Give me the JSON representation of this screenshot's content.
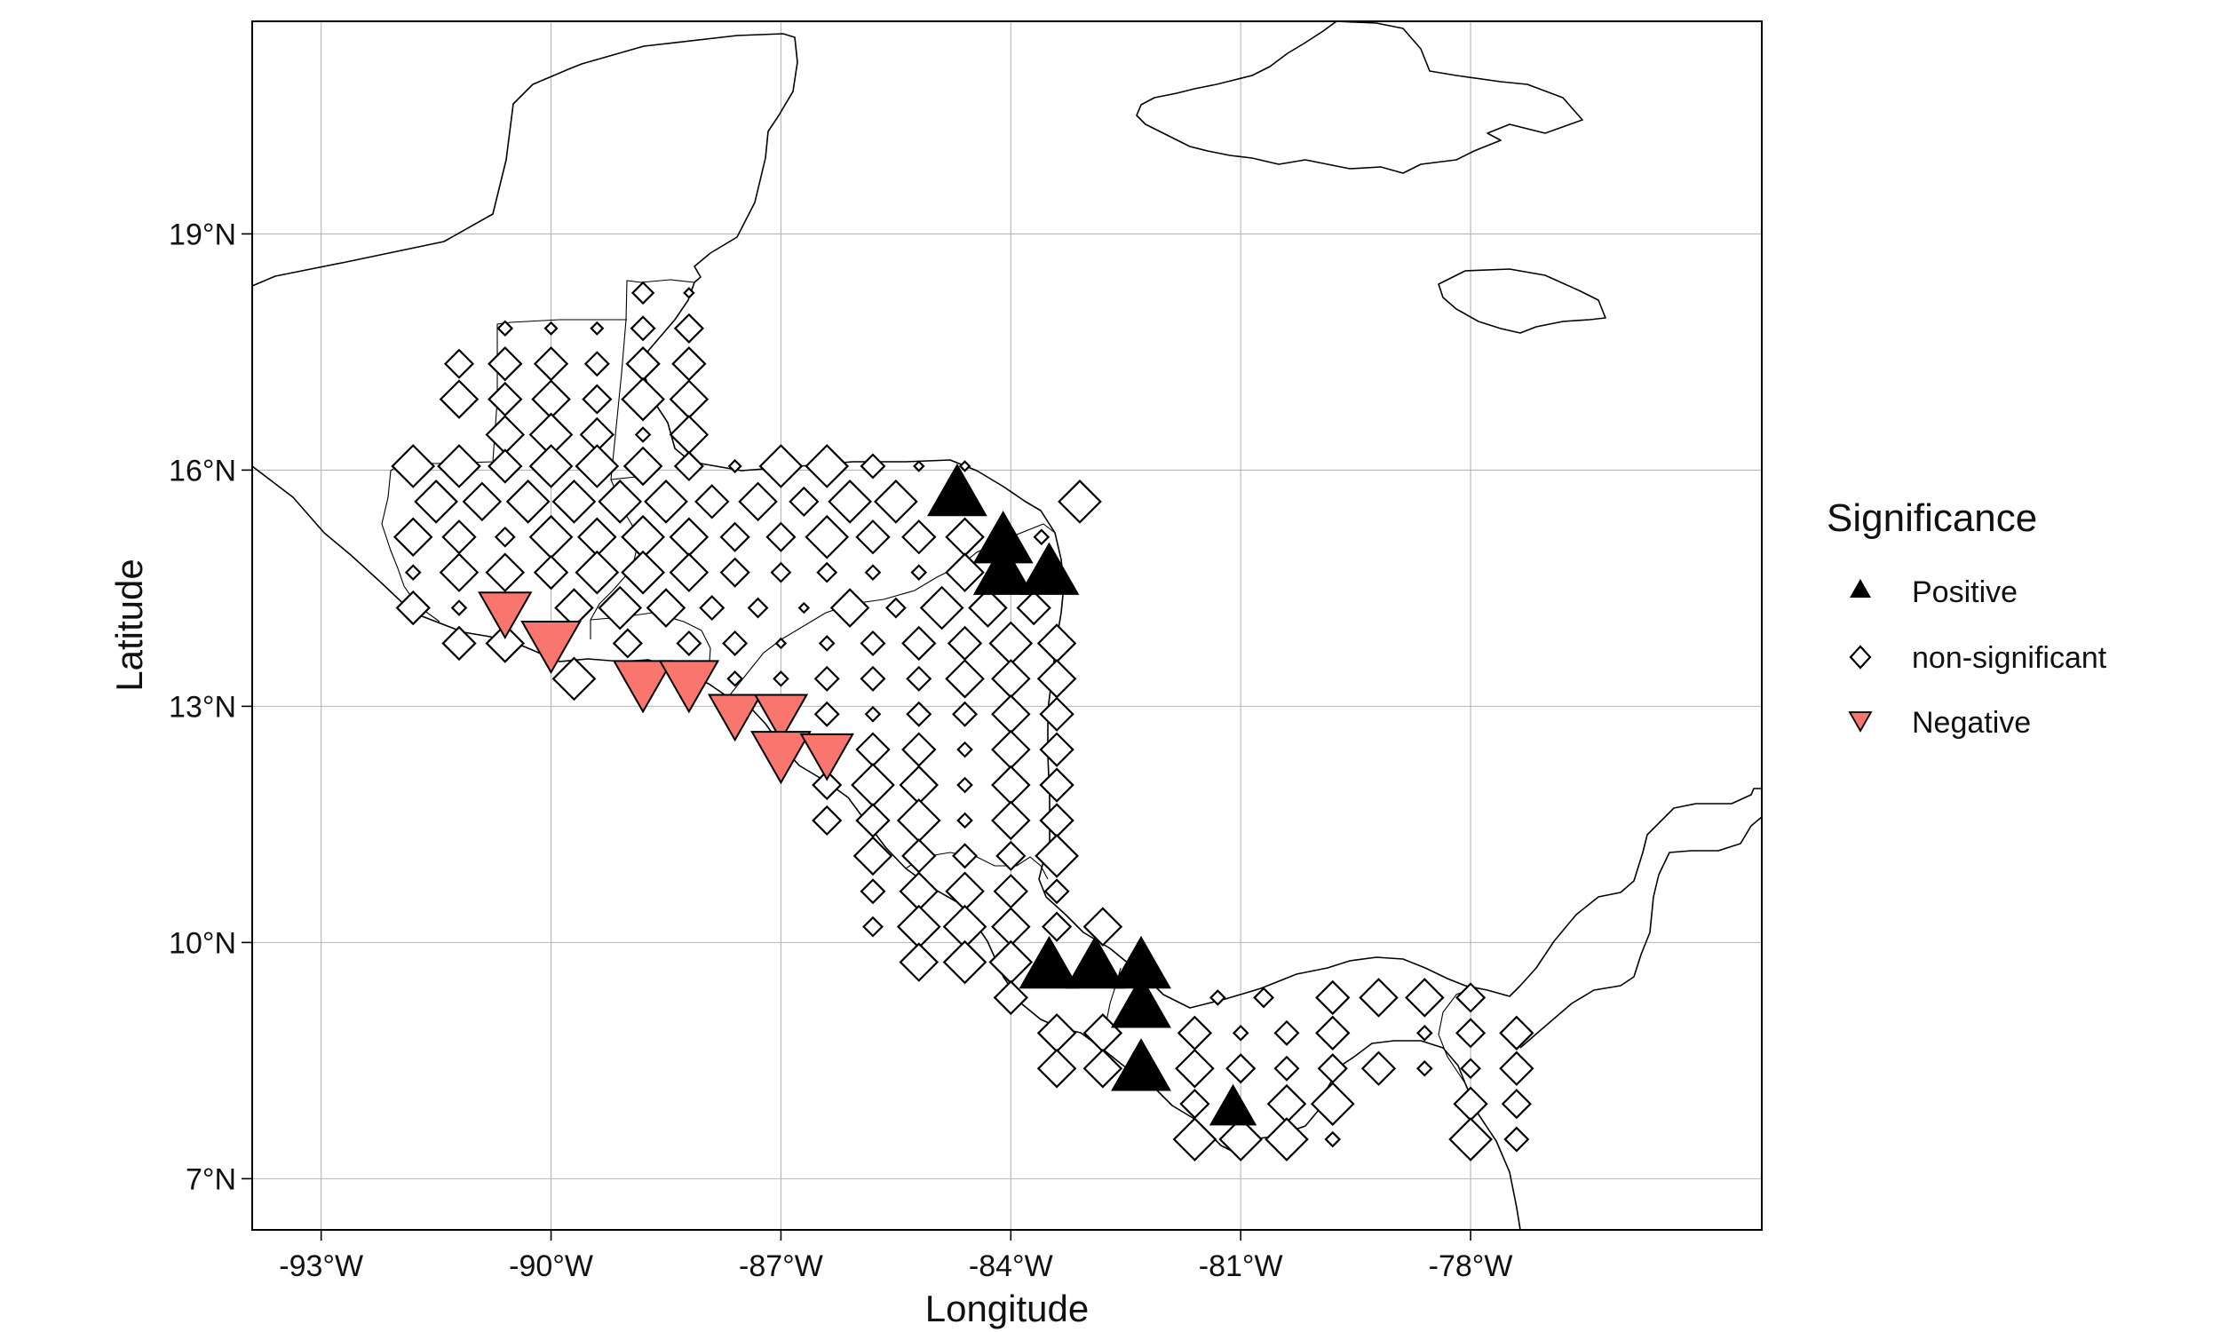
{
  "axes": {
    "x_label": "Longitude",
    "y_label": "Latitude",
    "x_range_deg": [
      -93.9,
      -74.2
    ],
    "y_range_deg": [
      6.35,
      21.7
    ],
    "x_ticks": [
      {
        "value": -93,
        "label": "-93°W"
      },
      {
        "value": -90,
        "label": "-90°W"
      },
      {
        "value": -87,
        "label": "-87°W"
      },
      {
        "value": -84,
        "label": "-84°W"
      },
      {
        "value": -81,
        "label": "-81°W"
      },
      {
        "value": -78,
        "label": "-78°W"
      }
    ],
    "y_ticks": [
      {
        "value": 7,
        "label": "7°N"
      },
      {
        "value": 10,
        "label": "10°N"
      },
      {
        "value": 13,
        "label": "13°N"
      },
      {
        "value": 16,
        "label": "16°N"
      },
      {
        "value": 19,
        "label": "19°N"
      }
    ]
  },
  "legend": {
    "title": "Significance",
    "items": [
      {
        "key": "positive",
        "label": "Positive",
        "shape": "triangle-up",
        "color": "#000000"
      },
      {
        "key": "ns",
        "label": "non-significant",
        "shape": "diamond-open",
        "color": "#ffffff"
      },
      {
        "key": "negative",
        "label": "Negative",
        "shape": "triangle-down",
        "color": "#F8766D"
      }
    ]
  },
  "colors": {
    "positive": "#000000",
    "negative": "#F8766D",
    "outline": "#000000",
    "grid": "#b5b5b5"
  },
  "chart_data": {
    "type": "scatter",
    "grid": true,
    "grid_spacing_deg": 0.6,
    "series": [
      {
        "name": "Positive",
        "points": [
          [
            -84.7,
            15.7,
            0.9
          ],
          [
            -84.1,
            15.1,
            0.9
          ],
          [
            -84.1,
            14.7,
            0.9
          ],
          [
            -83.5,
            14.7,
            0.9
          ],
          [
            -83.5,
            9.7,
            0.9
          ],
          [
            -82.9,
            9.7,
            0.9
          ],
          [
            -82.3,
            9.7,
            0.9
          ],
          [
            -82.3,
            9.2,
            0.9
          ],
          [
            -82.3,
            8.4,
            0.9
          ],
          [
            -81.1,
            7.9,
            0.7
          ]
        ]
      },
      {
        "name": "Negative",
        "points": [
          [
            -90.6,
            14.2,
            0.8
          ],
          [
            -90.0,
            13.8,
            0.9
          ],
          [
            -88.8,
            13.3,
            0.9
          ],
          [
            -88.2,
            13.3,
            0.9
          ],
          [
            -87.6,
            12.9,
            0.8
          ],
          [
            -87.0,
            12.9,
            0.8
          ],
          [
            -87.0,
            12.4,
            0.9
          ],
          [
            -86.4,
            12.4,
            0.8
          ]
        ]
      },
      {
        "name": "non-significant",
        "rows": [
          {
            "lat": 18.25,
            "cols": [
              [
                -88.8,
                0.45
              ],
              [
                -88.2,
                0.2
              ]
            ]
          },
          {
            "lat": 17.8,
            "cols": [
              [
                -90.6,
                0.3
              ],
              [
                -90.0,
                0.25
              ],
              [
                -89.4,
                0.25
              ],
              [
                -88.8,
                0.5
              ],
              [
                -88.2,
                0.6
              ]
            ]
          },
          {
            "lat": 17.35,
            "cols": [
              [
                -91.2,
                0.6
              ],
              [
                -90.6,
                0.7
              ],
              [
                -90.0,
                0.7
              ],
              [
                -89.4,
                0.5
              ],
              [
                -88.8,
                0.7
              ],
              [
                -88.2,
                0.7
              ]
            ]
          },
          {
            "lat": 16.9,
            "cols": [
              [
                -91.2,
                0.8
              ],
              [
                -90.6,
                0.7
              ],
              [
                -90.0,
                0.8
              ],
              [
                -89.4,
                0.6
              ],
              [
                -88.8,
                0.9
              ],
              [
                -88.2,
                0.8
              ]
            ]
          },
          {
            "lat": 16.45,
            "cols": [
              [
                -90.6,
                0.8
              ],
              [
                -90.0,
                0.9
              ],
              [
                -89.4,
                0.7
              ],
              [
                -88.8,
                0.3
              ],
              [
                -88.2,
                0.8
              ]
            ]
          },
          {
            "lat": 16.05,
            "cols": [
              [
                -91.8,
                0.9
              ],
              [
                -91.2,
                0.9
              ],
              [
                -90.6,
                0.7
              ],
              [
                -90.0,
                0.9
              ],
              [
                -89.4,
                0.9
              ],
              [
                -88.8,
                0.8
              ],
              [
                -88.2,
                0.6
              ],
              [
                -87.6,
                0.25
              ],
              [
                -87.0,
                0.9
              ],
              [
                -86.4,
                0.9
              ],
              [
                -85.8,
                0.5
              ],
              [
                -85.2,
                0.2
              ],
              [
                -84.6,
                0.2
              ]
            ]
          },
          {
            "lat": 15.6,
            "cols": [
              [
                -91.5,
                0.9
              ],
              [
                -90.9,
                0.8
              ],
              [
                -90.3,
                0.9
              ],
              [
                -89.7,
                0.9
              ],
              [
                -89.1,
                0.9
              ],
              [
                -88.5,
                0.9
              ],
              [
                -87.9,
                0.7
              ],
              [
                -87.3,
                0.8
              ],
              [
                -86.7,
                0.6
              ],
              [
                -86.1,
                0.9
              ],
              [
                -85.5,
                0.9
              ],
              [
                -83.1,
                0.9
              ]
            ]
          },
          {
            "lat": 15.15,
            "cols": [
              [
                -91.8,
                0.8
              ],
              [
                -91.2,
                0.7
              ],
              [
                -90.6,
                0.4
              ],
              [
                -90.0,
                0.9
              ],
              [
                -89.4,
                0.8
              ],
              [
                -88.8,
                0.9
              ],
              [
                -88.2,
                0.8
              ],
              [
                -87.6,
                0.6
              ],
              [
                -87.0,
                0.6
              ],
              [
                -86.4,
                0.9
              ],
              [
                -85.8,
                0.7
              ],
              [
                -85.2,
                0.7
              ],
              [
                -84.6,
                0.8
              ],
              [
                -83.6,
                0.3
              ]
            ]
          },
          {
            "lat": 14.7,
            "cols": [
              [
                -91.8,
                0.3
              ],
              [
                -91.2,
                0.8
              ],
              [
                -90.6,
                0.8
              ],
              [
                -90.0,
                0.7
              ],
              [
                -89.4,
                0.9
              ],
              [
                -88.8,
                0.9
              ],
              [
                -88.2,
                0.8
              ],
              [
                -87.6,
                0.6
              ],
              [
                -87.0,
                0.4
              ],
              [
                -86.4,
                0.4
              ],
              [
                -85.8,
                0.3
              ],
              [
                -85.2,
                0.3
              ],
              [
                -84.6,
                0.8
              ]
            ]
          },
          {
            "lat": 14.25,
            "cols": [
              [
                -91.8,
                0.7
              ],
              [
                -91.2,
                0.3
              ],
              [
                -89.7,
                0.8
              ],
              [
                -89.1,
                0.9
              ],
              [
                -88.5,
                0.8
              ],
              [
                -87.9,
                0.5
              ],
              [
                -87.3,
                0.4
              ],
              [
                -86.7,
                0.2
              ],
              [
                -86.1,
                0.8
              ],
              [
                -85.5,
                0.4
              ],
              [
                -84.9,
                0.9
              ],
              [
                -84.3,
                0.8
              ],
              [
                -83.7,
                0.7
              ]
            ]
          },
          {
            "lat": 13.8,
            "cols": [
              [
                -91.2,
                0.7
              ],
              [
                -90.6,
                0.8
              ],
              [
                -89.0,
                0.6
              ],
              [
                -88.2,
                0.5
              ],
              [
                -87.6,
                0.5
              ],
              [
                -87.0,
                0.2
              ],
              [
                -86.4,
                0.3
              ],
              [
                -85.8,
                0.5
              ],
              [
                -85.2,
                0.7
              ],
              [
                -84.6,
                0.7
              ],
              [
                -84.0,
                0.9
              ],
              [
                -83.4,
                0.8
              ]
            ]
          },
          {
            "lat": 13.35,
            "cols": [
              [
                -89.7,
                0.9
              ],
              [
                -87.6,
                0.3
              ],
              [
                -87.0,
                0.3
              ],
              [
                -86.4,
                0.5
              ],
              [
                -85.8,
                0.5
              ],
              [
                -85.2,
                0.5
              ],
              [
                -84.6,
                0.8
              ],
              [
                -84.0,
                0.8
              ],
              [
                -83.4,
                0.8
              ]
            ]
          },
          {
            "lat": 12.9,
            "cols": [
              [
                -86.4,
                0.5
              ],
              [
                -85.8,
                0.3
              ],
              [
                -85.2,
                0.5
              ],
              [
                -84.6,
                0.5
              ],
              [
                -84.0,
                0.8
              ],
              [
                -83.4,
                0.7
              ]
            ]
          },
          {
            "lat": 12.45,
            "cols": [
              [
                -85.8,
                0.7
              ],
              [
                -85.2,
                0.7
              ],
              [
                -84.6,
                0.3
              ],
              [
                -84.0,
                0.8
              ],
              [
                -83.4,
                0.7
              ]
            ]
          },
          {
            "lat": 12.0,
            "cols": [
              [
                -86.4,
                0.6
              ],
              [
                -85.8,
                0.9
              ],
              [
                -85.2,
                0.8
              ],
              [
                -84.6,
                0.3
              ],
              [
                -84.0,
                0.8
              ],
              [
                -83.4,
                0.7
              ]
            ]
          },
          {
            "lat": 11.55,
            "cols": [
              [
                -86.4,
                0.6
              ],
              [
                -85.8,
                0.7
              ],
              [
                -85.2,
                0.9
              ],
              [
                -84.6,
                0.3
              ],
              [
                -84.0,
                0.8
              ],
              [
                -83.4,
                0.7
              ]
            ]
          },
          {
            "lat": 11.1,
            "cols": [
              [
                -85.8,
                0.8
              ],
              [
                -85.2,
                0.7
              ],
              [
                -84.6,
                0.5
              ],
              [
                -84.0,
                0.6
              ],
              [
                -83.4,
                0.9
              ]
            ]
          },
          {
            "lat": 10.65,
            "cols": [
              [
                -85.8,
                0.5
              ],
              [
                -85.2,
                0.8
              ],
              [
                -84.6,
                0.8
              ],
              [
                -84.0,
                0.7
              ],
              [
                -83.4,
                0.5
              ]
            ]
          },
          {
            "lat": 10.2,
            "cols": [
              [
                -85.8,
                0.4
              ],
              [
                -85.2,
                0.9
              ],
              [
                -84.6,
                0.9
              ],
              [
                -84.0,
                0.8
              ],
              [
                -83.4,
                0.6
              ],
              [
                -82.8,
                0.8
              ]
            ]
          },
          {
            "lat": 9.75,
            "cols": [
              [
                -85.2,
                0.8
              ],
              [
                -84.6,
                0.9
              ],
              [
                -84.0,
                0.9
              ]
            ]
          },
          {
            "lat": 9.3,
            "cols": [
              [
                -84.0,
                0.7
              ],
              [
                -81.3,
                0.3
              ],
              [
                -80.7,
                0.4
              ],
              [
                -79.8,
                0.7
              ],
              [
                -79.2,
                0.8
              ],
              [
                -78.6,
                0.8
              ],
              [
                -78.0,
                0.6
              ]
            ]
          },
          {
            "lat": 8.85,
            "cols": [
              [
                -83.4,
                0.8
              ],
              [
                -82.8,
                0.8
              ],
              [
                -81.6,
                0.7
              ],
              [
                -81.0,
                0.3
              ],
              [
                -80.4,
                0.5
              ],
              [
                -79.8,
                0.7
              ],
              [
                -78.6,
                0.3
              ],
              [
                -78.0,
                0.6
              ],
              [
                -77.4,
                0.7
              ]
            ]
          },
          {
            "lat": 8.4,
            "cols": [
              [
                -83.4,
                0.8
              ],
              [
                -82.8,
                0.8
              ],
              [
                -81.6,
                0.8
              ],
              [
                -81.0,
                0.6
              ],
              [
                -80.4,
                0.5
              ],
              [
                -79.8,
                0.6
              ],
              [
                -79.2,
                0.7
              ],
              [
                -78.6,
                0.3
              ],
              [
                -78.0,
                0.4
              ],
              [
                -77.4,
                0.7
              ]
            ]
          },
          {
            "lat": 7.95,
            "cols": [
              [
                -81.6,
                0.6
              ],
              [
                -80.4,
                0.8
              ],
              [
                -79.8,
                0.9
              ],
              [
                -78.0,
                0.7
              ],
              [
                -77.4,
                0.6
              ]
            ]
          },
          {
            "lat": 7.5,
            "cols": [
              [
                -81.6,
                0.9
              ],
              [
                -81.0,
                0.9
              ],
              [
                -80.4,
                0.9
              ],
              [
                -79.8,
                0.3
              ],
              [
                -78.0,
                0.9
              ],
              [
                -77.4,
                0.5
              ]
            ]
          }
        ]
      }
    ]
  }
}
